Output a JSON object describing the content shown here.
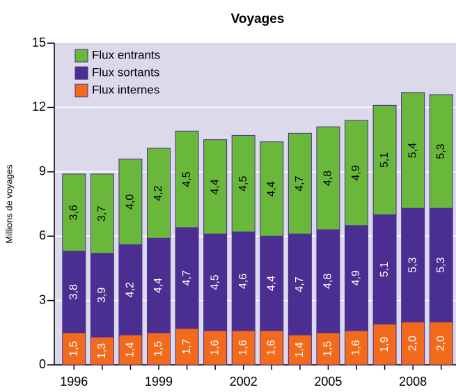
{
  "chart_data": {
    "type": "stacked-bar",
    "title": "Voyages",
    "y_label": "Millions de voyages",
    "categories": [
      "1996",
      null,
      null,
      "1999",
      null,
      null,
      "2002",
      null,
      null,
      "2005",
      null,
      null,
      "2008",
      null
    ],
    "series": [
      {
        "name": "Flux entrants",
        "color": "#6ab83b",
        "label_color": "#000000",
        "values": [
          3.6,
          3.7,
          4.0,
          4.2,
          4.5,
          4.4,
          4.5,
          4.4,
          4.7,
          4.8,
          4.9,
          5.1,
          5.4,
          5.3
        ],
        "value_labels": [
          "3,6",
          "3,7",
          "4,0",
          "4,2",
          "4,5",
          "4,4",
          "4,5",
          "4,4",
          "4,7",
          "4,8",
          "4,9",
          "5,1",
          "5,4",
          "5,3"
        ]
      },
      {
        "name": "Flux sortants",
        "color": "#4b2e91",
        "label_color": "#ffffff",
        "values": [
          3.8,
          3.9,
          4.2,
          4.4,
          4.7,
          4.5,
          4.6,
          4.4,
          4.7,
          4.8,
          4.9,
          5.1,
          5.3,
          5.3
        ],
        "value_labels": [
          "3,8",
          "3,9",
          "4,2",
          "4,4",
          "4,7",
          "4,5",
          "4,6",
          "4,4",
          "4,7",
          "4,8",
          "4,9",
          "5,1",
          "5,3",
          "5,3"
        ]
      },
      {
        "name": "Flux internes",
        "color": "#f26b1d",
        "label_color": "#ffffff",
        "values": [
          1.5,
          1.3,
          1.4,
          1.5,
          1.7,
          1.6,
          1.6,
          1.6,
          1.4,
          1.5,
          1.6,
          1.9,
          2.0,
          2.0
        ],
        "value_labels": [
          "1,5",
          "1,3",
          "1,4",
          "1,5",
          "1,7",
          "1,6",
          "1,6",
          "1,6",
          "1,4",
          "1,5",
          "1,6",
          "1,9",
          "2,0",
          "2,0"
        ]
      }
    ],
    "ylim": [
      0,
      15
    ],
    "yticks": [
      0,
      3,
      6,
      9,
      12,
      15
    ],
    "grid": true
  }
}
